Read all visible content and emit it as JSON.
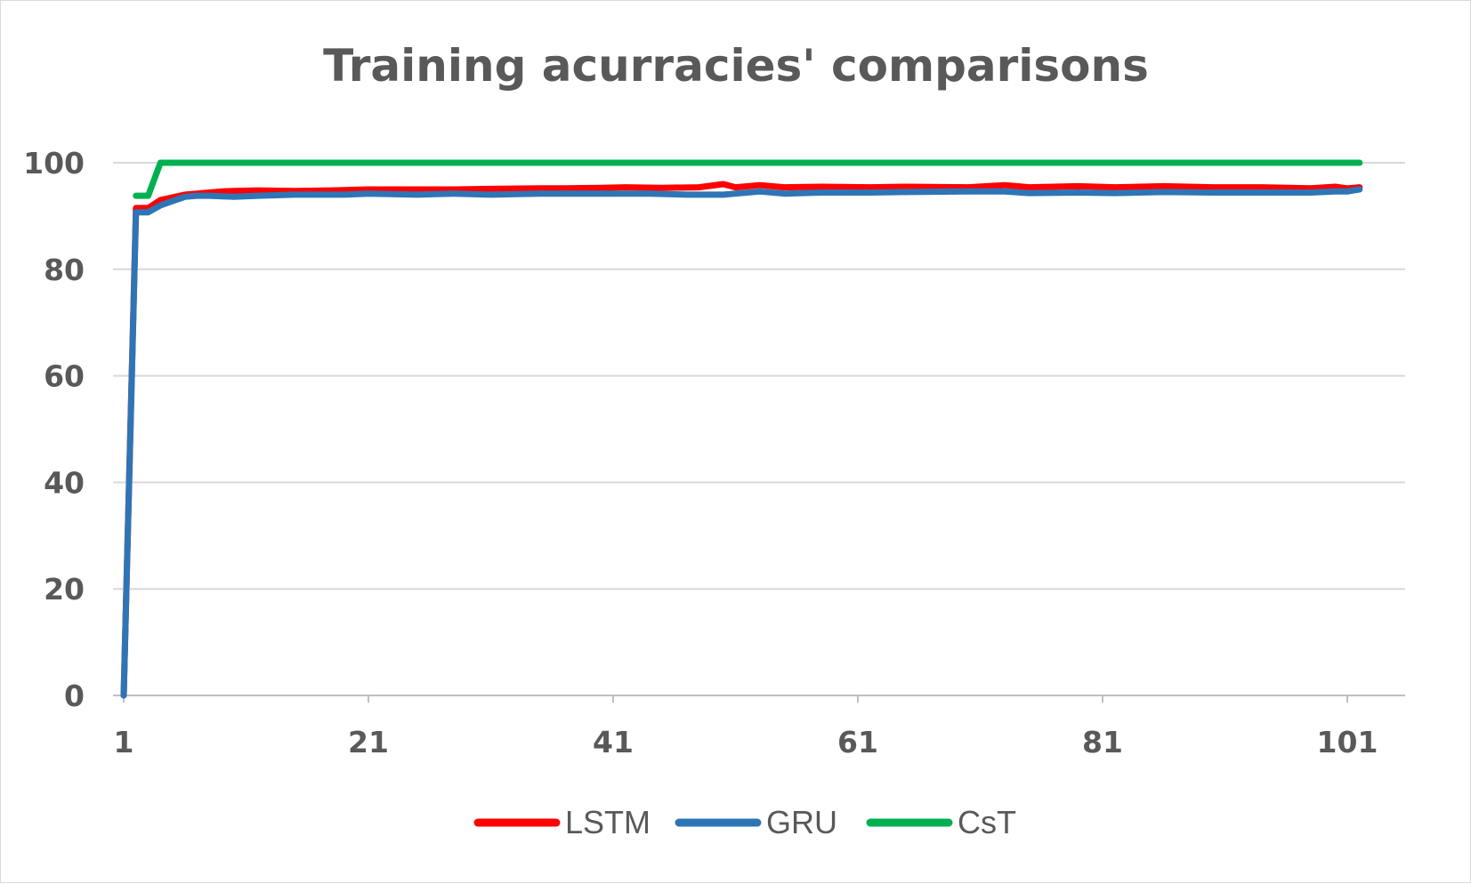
{
  "chart_data": {
    "type": "line",
    "title": "Training acurracies' comparisons",
    "xlabel": "",
    "ylabel": "",
    "xlim": [
      1,
      102
    ],
    "ylim": [
      0,
      100
    ],
    "x_ticks": [
      1,
      21,
      41,
      61,
      81,
      101
    ],
    "y_ticks": [
      0,
      20,
      40,
      60,
      80,
      100
    ],
    "grid": "horizontal",
    "legend_position": "bottom",
    "series": [
      {
        "name": "LSTM",
        "color": "#ff0000",
        "points": [
          [
            1,
            0
          ],
          [
            2,
            91.5
          ],
          [
            3,
            91.5
          ],
          [
            4,
            93
          ],
          [
            5,
            93.5
          ],
          [
            6,
            94
          ],
          [
            7,
            94.2
          ],
          [
            8,
            94.4
          ],
          [
            9,
            94.6
          ],
          [
            10,
            94.7
          ],
          [
            12,
            94.8
          ],
          [
            15,
            94.7
          ],
          [
            18,
            94.8
          ],
          [
            21,
            95
          ],
          [
            25,
            95
          ],
          [
            28,
            95
          ],
          [
            31,
            95.1
          ],
          [
            35,
            95.2
          ],
          [
            37,
            95.2
          ],
          [
            40,
            95.3
          ],
          [
            42,
            95.4
          ],
          [
            45,
            95.3
          ],
          [
            48,
            95.4
          ],
          [
            50,
            96
          ],
          [
            51,
            95.4
          ],
          [
            53,
            95.8
          ],
          [
            55,
            95.4
          ],
          [
            58,
            95.5
          ],
          [
            62,
            95.4
          ],
          [
            65,
            95.5
          ],
          [
            70,
            95.4
          ],
          [
            73,
            95.8
          ],
          [
            75,
            95.4
          ],
          [
            79,
            95.6
          ],
          [
            82,
            95.4
          ],
          [
            86,
            95.6
          ],
          [
            90,
            95.4
          ],
          [
            94,
            95.4
          ],
          [
            98,
            95.2
          ],
          [
            100,
            95.5
          ],
          [
            101,
            95.2
          ],
          [
            102,
            95.4
          ]
        ]
      },
      {
        "name": "GRU",
        "color": "#2e75b6",
        "points": [
          [
            1,
            0
          ],
          [
            2,
            90.7
          ],
          [
            3,
            90.7
          ],
          [
            4,
            92
          ],
          [
            5,
            92.8
          ],
          [
            6,
            93.6
          ],
          [
            7,
            93.8
          ],
          [
            8,
            93.8
          ],
          [
            10,
            93.6
          ],
          [
            12,
            93.8
          ],
          [
            15,
            94
          ],
          [
            17,
            94
          ],
          [
            19,
            94
          ],
          [
            21,
            94.2
          ],
          [
            25,
            94
          ],
          [
            28,
            94.2
          ],
          [
            31,
            94
          ],
          [
            35,
            94.2
          ],
          [
            40,
            94.2
          ],
          [
            44,
            94.2
          ],
          [
            47,
            94
          ],
          [
            50,
            94
          ],
          [
            51,
            94.2
          ],
          [
            53,
            94.6
          ],
          [
            55,
            94.2
          ],
          [
            58,
            94.4
          ],
          [
            62,
            94.4
          ],
          [
            65,
            94.5
          ],
          [
            70,
            94.6
          ],
          [
            73,
            94.6
          ],
          [
            75,
            94.3
          ],
          [
            79,
            94.4
          ],
          [
            82,
            94.3
          ],
          [
            86,
            94.5
          ],
          [
            90,
            94.4
          ],
          [
            94,
            94.4
          ],
          [
            98,
            94.4
          ],
          [
            100,
            94.6
          ],
          [
            101,
            94.6
          ],
          [
            102,
            95
          ]
        ]
      },
      {
        "name": "CsT",
        "color": "#00b050",
        "points": [
          [
            2,
            93.8
          ],
          [
            3,
            93.8
          ],
          [
            4,
            100
          ],
          [
            102,
            100
          ]
        ]
      }
    ]
  }
}
